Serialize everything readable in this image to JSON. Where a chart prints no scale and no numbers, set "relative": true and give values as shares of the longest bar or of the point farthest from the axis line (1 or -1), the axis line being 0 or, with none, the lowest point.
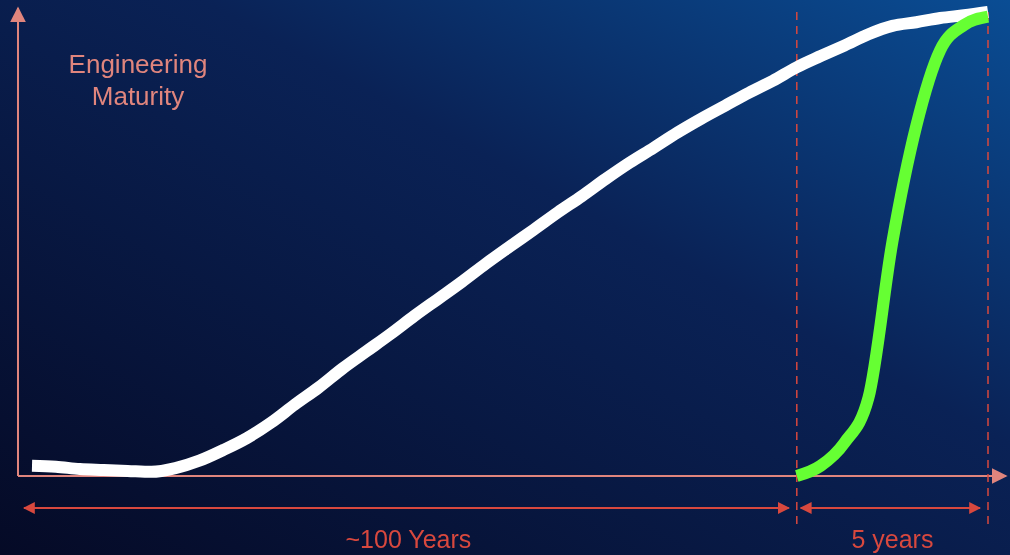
{
  "chart_data": {
    "type": "line",
    "relative": true,
    "ylabel": "Engineering Maturity",
    "legend": false,
    "grid": false,
    "marker": "none",
    "line_style": "solid",
    "categories": [
      null,
      null,
      null,
      null,
      null,
      null,
      null,
      null,
      null,
      null,
      null,
      null,
      null,
      null,
      null,
      null,
      null,
      null,
      null,
      null,
      null,
      null,
      null,
      null,
      null,
      null,
      null,
      null,
      null,
      null,
      null,
      null,
      null,
      null,
      null,
      null,
      null,
      null,
      null,
      null,
      null
    ],
    "series": [
      {
        "color": "#ffffff",
        "values": [
          0.022,
          0.02,
          0.015,
          0.013,
          0.011,
          0.009,
          0.017,
          0.033,
          0.056,
          0.082,
          0.115,
          0.154,
          0.191,
          0.232,
          0.269,
          0.306,
          0.345,
          0.382,
          0.419,
          0.458,
          0.495,
          0.531,
          0.568,
          0.603,
          0.64,
          0.675,
          0.707,
          0.74,
          0.77,
          0.798,
          0.826,
          0.852,
          0.881,
          0.905,
          0.928,
          0.952,
          0.97,
          0.978,
          0.987,
          0.993,
          1
        ]
      },
      {
        "color": "#66ff33",
        "values": [
          null,
          null,
          null,
          null,
          null,
          null,
          null,
          null,
          null,
          null,
          null,
          null,
          null,
          null,
          null,
          null,
          null,
          null,
          null,
          null,
          null,
          null,
          null,
          null,
          null,
          null,
          null,
          null,
          null,
          null,
          null,
          null,
          0,
          0.022,
          0.072,
          0.169,
          0.505,
          0.755,
          0.918,
          0.972,
          0.99
        ]
      }
    ],
    "annotations": [
      "~100 Years",
      "5 years"
    ]
  }
}
